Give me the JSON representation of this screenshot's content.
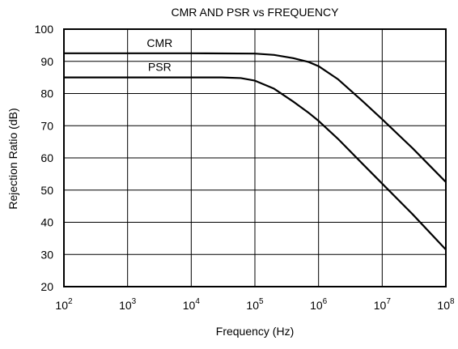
{
  "chart_data": {
    "type": "line",
    "title": "CMR AND PSR vs FREQUENCY",
    "xlabel": "Frequency (Hz)",
    "ylabel": "Rejection Ratio (dB)",
    "xscale": "log",
    "xlim": [
      100,
      100000000
    ],
    "ylim": [
      20,
      100
    ],
    "x_ticks": [
      {
        "base": "10",
        "exp": "2",
        "value": 100
      },
      {
        "base": "10",
        "exp": "3",
        "value": 1000
      },
      {
        "base": "10",
        "exp": "4",
        "value": 10000
      },
      {
        "base": "10",
        "exp": "5",
        "value": 100000
      },
      {
        "base": "10",
        "exp": "6",
        "value": 1000000
      },
      {
        "base": "10",
        "exp": "7",
        "value": 10000000
      },
      {
        "base": "10",
        "exp": "8",
        "value": 100000000
      }
    ],
    "y_ticks": [
      "20",
      "30",
      "40",
      "50",
      "60",
      "70",
      "80",
      "90",
      "100"
    ],
    "grid": true,
    "series": [
      {
        "name": "CMR",
        "x": [
          100,
          1000,
          10000,
          100000,
          200000,
          400000,
          700000,
          1000000,
          2000000,
          5000000,
          10000000,
          30000000,
          100000000
        ],
        "values": [
          92.5,
          92.5,
          92.5,
          92.4,
          92.0,
          91.0,
          89.8,
          88.5,
          84.5,
          77.5,
          72.0,
          63.0,
          52.5
        ]
      },
      {
        "name": "PSR",
        "x": [
          100,
          1000,
          10000,
          30000,
          60000,
          100000,
          200000,
          400000,
          700000,
          1000000,
          2000000,
          5000000,
          10000000,
          30000000,
          100000000
        ],
        "values": [
          85.0,
          85.0,
          85.0,
          85.0,
          84.8,
          84.0,
          81.5,
          77.5,
          74.0,
          71.5,
          66.0,
          58.0,
          52.0,
          42.5,
          31.5
        ]
      }
    ],
    "series_label_anchors": [
      {
        "x": 10000,
        "y": 92.5
      },
      {
        "x": 10000,
        "y": 85.0
      }
    ]
  }
}
